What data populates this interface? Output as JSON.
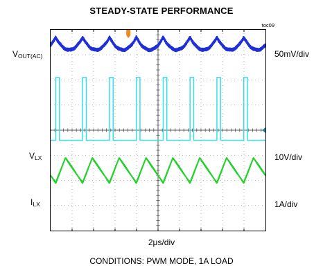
{
  "title": "STEADY-STATE PERFORMANCE",
  "figure_id": "toc09",
  "channels": [
    {
      "name_main": "V",
      "name_sub": "OUT(AC)",
      "scale": "50mV/div",
      "color": "#1f2fd6"
    },
    {
      "name_main": "V",
      "name_sub": "LX",
      "scale": "10V/div",
      "color": "#33e0ea"
    },
    {
      "name_main": "I",
      "name_sub": "LX",
      "scale": "1A/div",
      "color": "#22d12a"
    }
  ],
  "timebase": "2μs/div",
  "conditions": "CONDITIONS: PWM MODE, 1A LOAD",
  "trigger_color": "#f08a1c",
  "chart_data": {
    "type": "line",
    "title": "STEADY-STATE PERFORMANCE",
    "grid": true,
    "divisions": {
      "x": 10,
      "y": 8
    },
    "time_per_div": "2μs/div",
    "switching_period_div": 1.25,
    "switch_on_time_div": 0.17,
    "series": [
      {
        "name": "VOUT(AC)",
        "scale": "50mV/div",
        "waveform": "ripple",
        "center_div": 7.45,
        "amplitude_div": 0.25
      },
      {
        "name": "VLX",
        "scale": "10V/div",
        "waveform": "pulse",
        "low_div": 3.6,
        "high_div": 6.1
      },
      {
        "name": "ILX",
        "scale": "1A/div",
        "waveform": "triangle",
        "min_div": 1.9,
        "max_div": 2.9
      }
    ]
  }
}
